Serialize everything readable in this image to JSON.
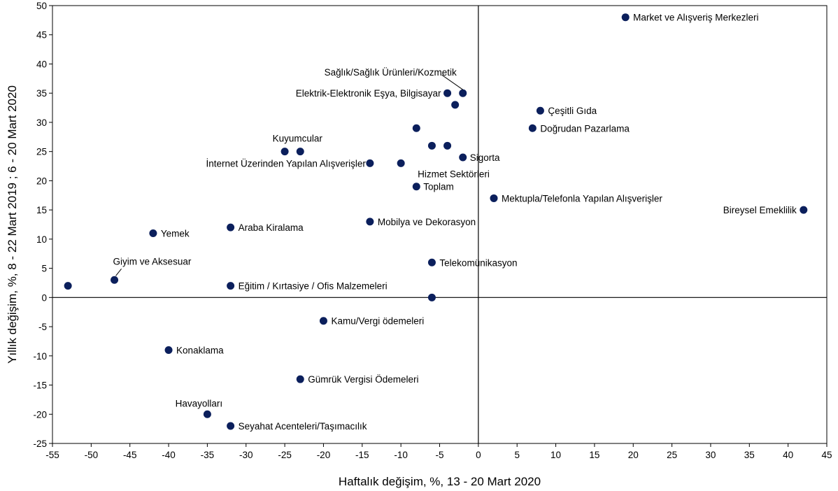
{
  "chart_data": {
    "type": "scatter",
    "xlabel": "Haftalık değişim, %, 13 - 20 Mart 2020",
    "ylabel": "Yıllık değişim, %, 8 - 22 Mart 2019 ; 6 - 20 Mart 2020",
    "xlim": [
      -55,
      45
    ],
    "ylim": [
      -25,
      50
    ],
    "xticks": [
      "-55",
      "-50",
      "-45",
      "-40",
      "-35",
      "-30",
      "-25",
      "-20",
      "-15",
      "-10",
      "-5",
      "0",
      "5",
      "10",
      "15",
      "20",
      "25",
      "30",
      "35",
      "40",
      "45"
    ],
    "yticks": [
      "50",
      "45",
      "40",
      "35",
      "30",
      "25",
      "20",
      "15",
      "10",
      "5",
      "0",
      "-5",
      "-10",
      "-15",
      "-20",
      "-25"
    ],
    "marker_color": "#0b1f5c",
    "points": [
      {
        "x": 19,
        "y": 48,
        "label": "Market ve Alışveriş Merkezleri"
      },
      {
        "x": -2,
        "y": 35,
        "label": "Sağlık/Sağlık Ürünleri/Kozmetik"
      },
      {
        "x": -4,
        "y": 35,
        "label": "Elektrik-Elektronik Eşya, Bilgisayar"
      },
      {
        "x": -3,
        "y": 33,
        "label": ""
      },
      {
        "x": 8,
        "y": 32,
        "label": "Çeşitli Gıda"
      },
      {
        "x": 7,
        "y": 29,
        "label": "Doğrudan Pazarlama"
      },
      {
        "x": -8,
        "y": 29,
        "label": ""
      },
      {
        "x": -6,
        "y": 26,
        "label": ""
      },
      {
        "x": -4,
        "y": 26,
        "label": ""
      },
      {
        "x": -25,
        "y": 25,
        "label": ""
      },
      {
        "x": -23,
        "y": 25,
        "label": "Kuyumcular"
      },
      {
        "x": -2,
        "y": 24,
        "label": "Sigorta"
      },
      {
        "x": -14,
        "y": 23,
        "label": "İnternet Üzerinden Yapılan Alışverişler"
      },
      {
        "x": -10,
        "y": 23,
        "label": "Hizmet Sektörleri"
      },
      {
        "x": -8,
        "y": 19,
        "label": "Toplam"
      },
      {
        "x": 2,
        "y": 17,
        "label": "Mektupla/Telefonla Yapılan Alışverişler"
      },
      {
        "x": 42,
        "y": 15,
        "label": "Bireysel Emeklilik"
      },
      {
        "x": -14,
        "y": 13,
        "label": "Mobilya ve Dekorasyon"
      },
      {
        "x": -32,
        "y": 12,
        "label": "Araba Kiralama"
      },
      {
        "x": -42,
        "y": 11,
        "label": "Yemek"
      },
      {
        "x": -6,
        "y": 6,
        "label": "Telekomünikasyon"
      },
      {
        "x": -47,
        "y": 3,
        "label": "Giyim ve Aksesuar"
      },
      {
        "x": -53,
        "y": 2,
        "label": ""
      },
      {
        "x": -32,
        "y": 2,
        "label": "Eğitim / Kırtasiye / Ofis Malzemeleri"
      },
      {
        "x": -6,
        "y": 0,
        "label": ""
      },
      {
        "x": -20,
        "y": -4,
        "label": "Kamu/Vergi ödemeleri"
      },
      {
        "x": -40,
        "y": -9,
        "label": "Konaklama"
      },
      {
        "x": -23,
        "y": -14,
        "label": "Gümrük Vergisi Ödemeleri"
      },
      {
        "x": -35,
        "y": -20,
        "label": "Havayolları"
      },
      {
        "x": -32,
        "y": -22,
        "label": "Seyahat Acenteleri/Taşımacılık"
      }
    ]
  }
}
